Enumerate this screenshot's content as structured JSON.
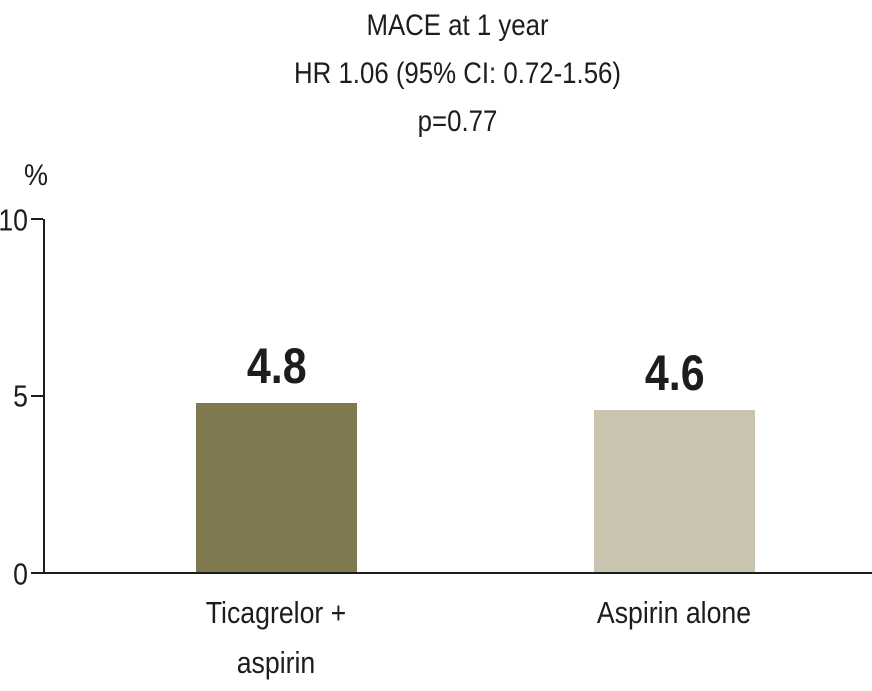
{
  "chart_data": {
    "type": "bar",
    "title": "MACE at 1 year",
    "title_lines": [
      "MACE at 1 year",
      "HR 1.06 (95% CI: 0.72-1.56)",
      "p=0.77"
    ],
    "ylabel": "%",
    "xlabel": "",
    "ylim": [
      0,
      10
    ],
    "yticks": [
      "10",
      "5",
      "0"
    ],
    "grid": false,
    "legend": false,
    "categories": [
      "Ticagrelor + aspirin",
      "Aspirin alone"
    ],
    "category_lines": [
      [
        "Ticagrelor +",
        "aspirin"
      ],
      [
        "Aspirin alone"
      ]
    ],
    "values": [
      4.8,
      4.6
    ],
    "value_labels": [
      "4.8",
      "4.6"
    ],
    "bar_colors": [
      "#80784f",
      "#c9c4b0"
    ],
    "axis_color": "#1d1d1b",
    "text_color": "#1d1d1b",
    "background_color": "#ffffff"
  }
}
